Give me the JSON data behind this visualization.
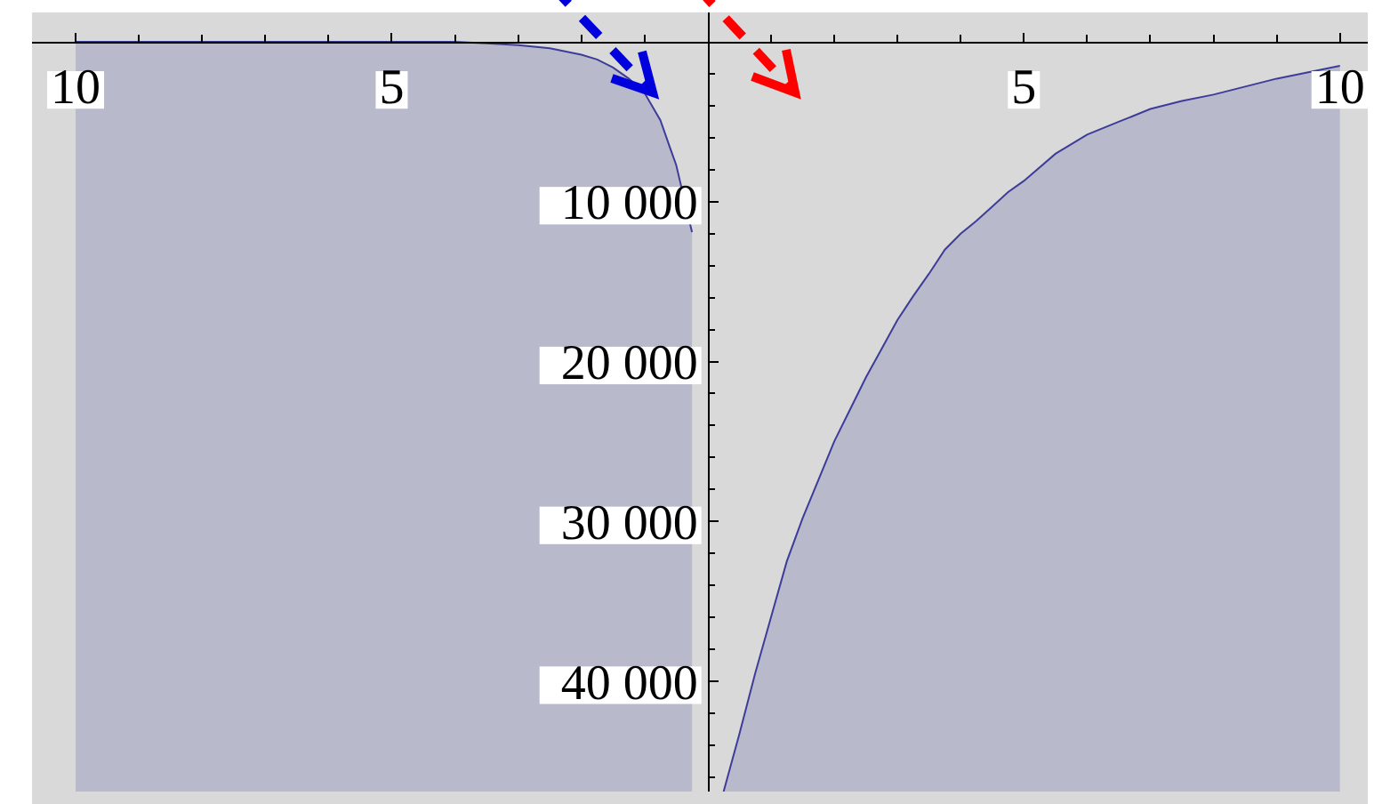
{
  "chart_data": {
    "type": "line",
    "series": [
      {
        "color": "#3d3d99",
        "x": [
          -10,
          -8,
          -6,
          -5,
          -4,
          -3.5,
          -3,
          -2.5,
          -2,
          -1.75,
          -1.5,
          -1.25,
          -1,
          -0.75,
          -0.6,
          -0.5,
          -0.25
        ],
        "values": [
          0,
          0,
          0,
          0,
          0,
          -100,
          -200,
          -400,
          -800,
          -1100,
          -1600,
          -2300,
          -3200,
          -4900,
          -6600,
          -7700,
          -11900
        ],
        "lower": [
          -46900,
          -46900,
          -46900,
          -46900,
          -46900,
          -46900,
          -46900,
          -46900,
          -46900,
          -46900,
          -46900,
          -46900,
          -46900,
          -46900,
          -46900,
          -46900,
          -46900
        ],
        "upper": [
          0,
          0,
          0,
          0,
          0,
          -100,
          -200,
          -400,
          -800,
          -1100,
          -1600,
          -2300,
          -3200,
          -4900,
          -6600,
          -7700,
          -11900
        ]
      },
      {
        "color": "#3d3d99",
        "x": [
          0.25,
          0.5,
          0.75,
          1,
          1.25,
          1.5,
          1.75,
          2,
          2.25,
          2.5,
          2.75,
          3,
          3.25,
          3.5,
          3.75,
          4,
          4.25,
          4.5,
          4.75,
          5,
          5.5,
          6,
          6.5,
          7,
          7.5,
          8,
          8.5,
          9,
          9.5,
          10
        ],
        "values": [
          -46900,
          -43300,
          -39500,
          -36000,
          -32500,
          -29800,
          -27400,
          -25000,
          -23000,
          -21000,
          -19200,
          -17400,
          -15900,
          -14500,
          -13000,
          -12000,
          -11200,
          -10300,
          -9400,
          -8700,
          -7000,
          -5800,
          -5000,
          -4200,
          -3700,
          -3300,
          -2800,
          -2300,
          -1900,
          -1500
        ],
        "lower": [
          -46900,
          -46900,
          -46900,
          -46900,
          -46900,
          -46900,
          -46900,
          -46900,
          -46900,
          -46900,
          -46900,
          -46900,
          -46900,
          -46900,
          -46900,
          -46900,
          -46900,
          -46900,
          -46900,
          -46900,
          -46900,
          -46900,
          -46900,
          -46900,
          -46900,
          -46900,
          -46900,
          -46900,
          -46900,
          -46900
        ],
        "upper": [
          -46900,
          -43300,
          -39500,
          -36000,
          -32500,
          -29800,
          -27400,
          -25000,
          -23000,
          -21000,
          -19200,
          -17400,
          -15900,
          -14500,
          -13000,
          -12000,
          -11200,
          -10300,
          -9400,
          -8700,
          -7000,
          -5800,
          -5000,
          -4200,
          -3700,
          -3300,
          -2800,
          -2300,
          -1900,
          -1500
        ]
      }
    ],
    "xlim": [
      -10.69,
      10.44
    ],
    "ylim": [
      -46900,
      1840
    ],
    "xticks": [
      {
        "value": -10,
        "label": "10"
      },
      {
        "value": -9,
        "label": null
      },
      {
        "value": -8,
        "label": null
      },
      {
        "value": -7,
        "label": null
      },
      {
        "value": -6,
        "label": null
      },
      {
        "value": -5,
        "label": "5"
      },
      {
        "value": -4,
        "label": null
      },
      {
        "value": -3,
        "label": null
      },
      {
        "value": -2,
        "label": null
      },
      {
        "value": -1,
        "label": null
      },
      {
        "value": 1,
        "label": null
      },
      {
        "value": 2,
        "label": null
      },
      {
        "value": 3,
        "label": null
      },
      {
        "value": 4,
        "label": null
      },
      5,
      {
        "value": 6,
        "label": null
      },
      {
        "value": 7,
        "label": null
      },
      {
        "value": 8,
        "label": null
      },
      {
        "value": 9,
        "label": null
      },
      10
    ],
    "yticks": [
      {
        "value": -2000,
        "label": null
      },
      {
        "value": -4000,
        "label": null
      },
      {
        "value": -6000,
        "label": null
      },
      {
        "value": -8000,
        "label": null
      },
      {
        "value": -10000,
        "label": "10 000"
      },
      {
        "value": -12000,
        "label": null
      },
      {
        "value": -14000,
        "label": null
      },
      {
        "value": -16000,
        "label": null
      },
      {
        "value": -18000,
        "label": null
      },
      {
        "value": -20000,
        "label": "20 000"
      },
      {
        "value": -22000,
        "label": null
      },
      {
        "value": -24000,
        "label": null
      },
      {
        "value": -26000,
        "label": null
      },
      {
        "value": -28000,
        "label": null
      },
      {
        "value": -30000,
        "label": "30 000"
      },
      {
        "value": -32000,
        "label": null
      },
      {
        "value": -34000,
        "label": null
      },
      {
        "value": -36000,
        "label": null
      },
      {
        "value": -38000,
        "label": null
      },
      {
        "value": -40000,
        "label": "40 000"
      },
      {
        "value": -42000,
        "label": null
      },
      {
        "value": -44000,
        "label": null
      },
      {
        "value": -46000,
        "label": null
      }
    ]
  }
}
